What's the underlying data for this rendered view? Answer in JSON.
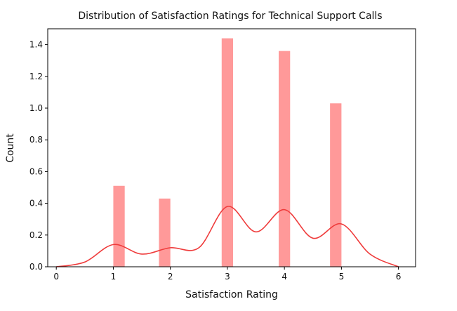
{
  "chart_data": {
    "type": "bar",
    "title": "Distribution of Satisfaction Ratings for Technical Support Calls",
    "xlabel": "Satisfaction Rating",
    "ylabel": "Count",
    "xlim": [
      -0.15,
      6.3
    ],
    "ylim": [
      0,
      1.5
    ],
    "xticks": [
      0,
      1,
      2,
      3,
      4,
      5,
      6
    ],
    "yticks": [
      0.0,
      0.2,
      0.4,
      0.6,
      0.8,
      1.0,
      1.2,
      1.4
    ],
    "ytick_labels": [
      "0.0",
      "0.2",
      "0.4",
      "0.6",
      "0.8",
      "1.0",
      "1.2",
      "1.4"
    ],
    "xtick_labels": [
      "0",
      "1",
      "2",
      "3",
      "4",
      "5",
      "6"
    ],
    "bar_color": "#ff9999",
    "kde_color": "#ef3b3b",
    "bars": [
      {
        "x": 1.1,
        "width": 0.2,
        "value": 0.51
      },
      {
        "x": 1.9,
        "width": 0.2,
        "value": 0.43
      },
      {
        "x": 3.0,
        "width": 0.2,
        "value": 1.44
      },
      {
        "x": 4.0,
        "width": 0.2,
        "value": 1.36
      },
      {
        "x": 4.9,
        "width": 0.2,
        "value": 1.03
      }
    ],
    "kde": {
      "x": [
        0.0,
        0.5,
        1.0,
        1.5,
        2.0,
        2.5,
        3.0,
        3.5,
        4.0,
        4.5,
        5.0,
        5.5,
        6.0
      ],
      "y": [
        0.0,
        0.03,
        0.14,
        0.08,
        0.12,
        0.12,
        0.38,
        0.22,
        0.36,
        0.18,
        0.27,
        0.08,
        0.0
      ]
    },
    "grid": false,
    "legend": "none"
  }
}
